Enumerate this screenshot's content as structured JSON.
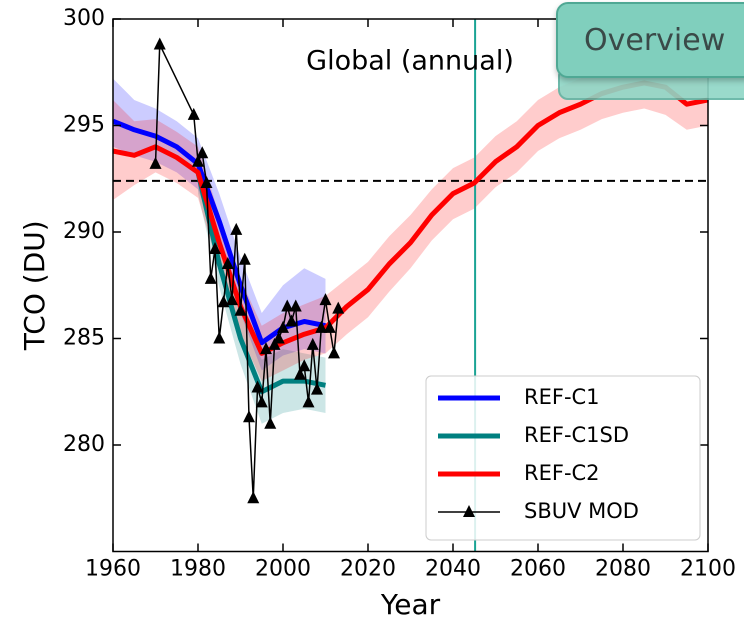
{
  "chart_data": {
    "type": "line",
    "title": "Global (annual)",
    "x_label": "Year",
    "y_label": "TCO (DU)",
    "xlim": [
      1960,
      2100
    ],
    "xticks": [
      1960,
      1980,
      2000,
      2020,
      2040,
      2060,
      2080,
      2100
    ],
    "ylim": [
      275,
      300
    ],
    "yticks": [
      280,
      285,
      290,
      295,
      300
    ],
    "hline": 292.4,
    "vline": 2045.2,
    "legend": "lower right",
    "series": [
      {
        "name": "REF-C1",
        "color": "#0000ff",
        "x": [
          1960,
          1965,
          1970,
          1975,
          1980,
          1985,
          1990,
          1995,
          2000,
          2005,
          2010
        ],
        "values": [
          295.2,
          294.8,
          294.5,
          294.0,
          293.2,
          290.5,
          287.5,
          284.8,
          285.5,
          285.8,
          285.6
        ],
        "lower": [
          294.0,
          293.6,
          293.3,
          292.8,
          292.0,
          289.3,
          286.2,
          283.5,
          284.2,
          284.5,
          284.3
        ],
        "upper": [
          297.2,
          296.2,
          295.8,
          295.2,
          294.4,
          291.8,
          288.8,
          286.2,
          287.5,
          288.3,
          287.8
        ]
      },
      {
        "name": "REF-C1SD",
        "color": "#008080",
        "x": [
          1980,
          1985,
          1990,
          1995,
          2000,
          2005,
          2010
        ],
        "values": [
          292.8,
          288.5,
          285.0,
          282.5,
          283.0,
          283.0,
          282.8
        ],
        "lower": [
          291.8,
          287.4,
          283.8,
          281.0,
          281.5,
          281.7,
          281.5
        ],
        "upper": [
          293.8,
          289.6,
          286.2,
          284.0,
          284.5,
          284.3,
          284.1
        ]
      },
      {
        "name": "REF-C2",
        "color": "#ff0000",
        "x": [
          1960,
          1965,
          1970,
          1975,
          1980,
          1985,
          1990,
          1995,
          2000,
          2005,
          2010,
          2015,
          2020,
          2025,
          2030,
          2035,
          2040,
          2045,
          2050,
          2055,
          2060,
          2065,
          2070,
          2075,
          2080,
          2085,
          2090,
          2095,
          2100
        ],
        "values": [
          293.8,
          293.6,
          294.0,
          293.5,
          292.8,
          289.5,
          286.5,
          284.3,
          284.8,
          285.2,
          285.5,
          286.5,
          287.3,
          288.5,
          289.5,
          290.8,
          291.8,
          292.3,
          293.3,
          294.0,
          295.0,
          295.6,
          296.0,
          296.5,
          296.8,
          297.0,
          296.8,
          296.0,
          296.2
        ],
        "lower": [
          291.5,
          292.2,
          292.8,
          292.3,
          291.6,
          288.2,
          285.2,
          283.0,
          283.5,
          284.0,
          284.3,
          285.2,
          286.0,
          287.2,
          288.3,
          289.6,
          290.6,
          291.1,
          292.1,
          292.8,
          293.8,
          294.4,
          294.8,
          295.3,
          295.6,
          295.8,
          295.5,
          294.8,
          295.0
        ],
        "upper": [
          296.2,
          295.2,
          295.3,
          294.7,
          294.0,
          290.8,
          287.8,
          285.6,
          286.2,
          286.6,
          287.0,
          287.8,
          288.6,
          289.8,
          290.8,
          292.0,
          293.0,
          293.5,
          294.5,
          295.2,
          296.2,
          296.8,
          297.2,
          297.7,
          298.0,
          298.2,
          298.0,
          297.2,
          297.4
        ]
      },
      {
        "name": "SBUV MOD",
        "color": "#000000",
        "marker": "triangle",
        "x": [
          1970,
          1971,
          1979,
          1980,
          1981,
          1982,
          1983,
          1984,
          1985,
          1986,
          1987,
          1988,
          1989,
          1990,
          1991,
          1992,
          1993,
          1994,
          1995,
          1996,
          1997,
          1998,
          1999,
          2000,
          2001,
          2002,
          2003,
          2004,
          2005,
          2006,
          2007,
          2008,
          2009,
          2010,
          2011,
          2012,
          2013
        ],
        "values": [
          293.2,
          298.8,
          295.5,
          293.3,
          293.7,
          292.3,
          287.8,
          289.2,
          285.0,
          286.7,
          288.5,
          286.8,
          290.1,
          286.3,
          288.7,
          281.3,
          277.5,
          282.7,
          282.0,
          284.5,
          281.0,
          284.7,
          285.0,
          285.5,
          286.5,
          285.8,
          286.5,
          283.3,
          283.7,
          282.0,
          284.7,
          282.6,
          285.5,
          286.8,
          285.5,
          284.3,
          286.4
        ]
      }
    ]
  },
  "overview_button": "Overview"
}
